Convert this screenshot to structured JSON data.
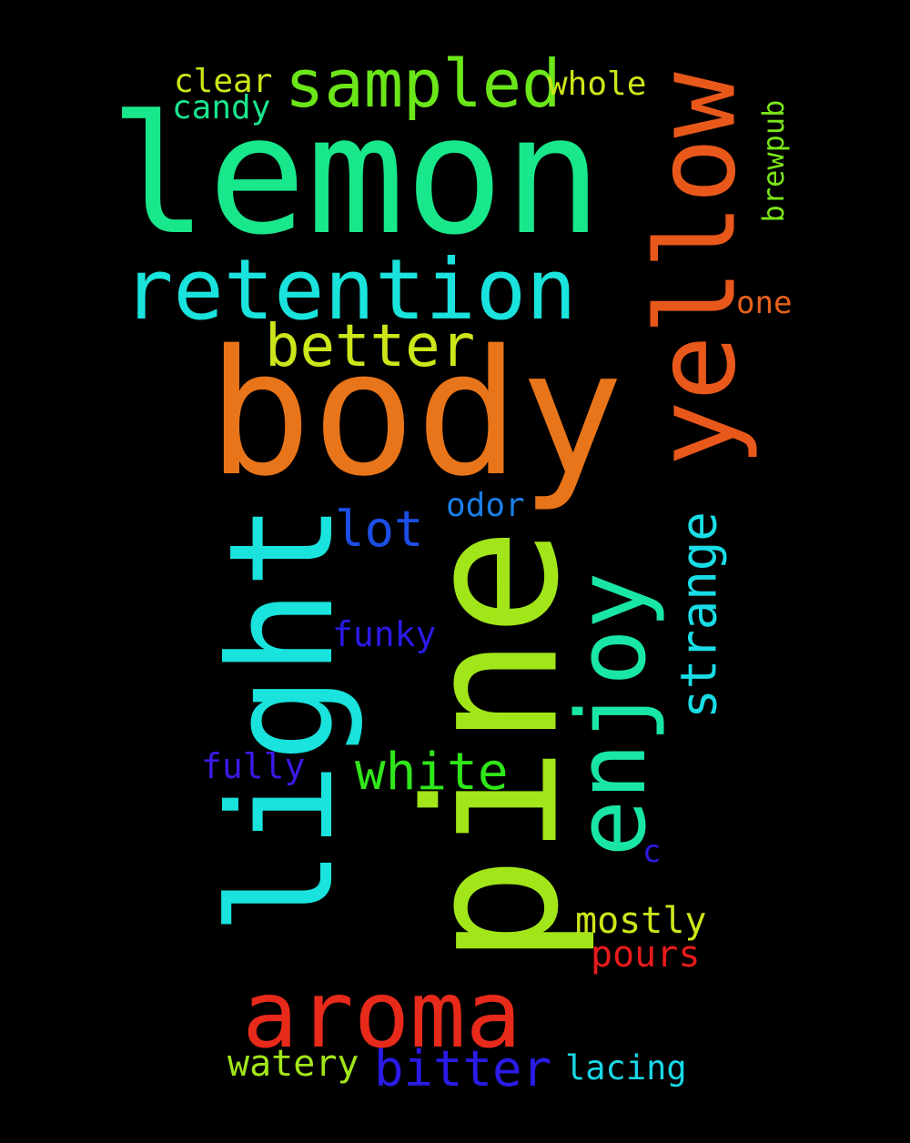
{
  "background": "#000000",
  "words": [
    {
      "text": "lemon",
      "color": "#19e78c",
      "rotated": false
    },
    {
      "text": "body",
      "color": "#e8751a",
      "rotated": false
    },
    {
      "text": "pine",
      "color": "#a2e619",
      "rotated": true
    },
    {
      "text": "light",
      "color": "#19e3dc",
      "rotated": true
    },
    {
      "text": "yellow",
      "color": "#e9581b",
      "rotated": true
    },
    {
      "text": "retention",
      "color": "#19e3dc",
      "rotated": false
    },
    {
      "text": "enjoy",
      "color": "#19e6a6",
      "rotated": true
    },
    {
      "text": "aroma",
      "color": "#e82a1b",
      "rotated": false
    },
    {
      "text": "sampled",
      "color": "#6be619",
      "rotated": false
    },
    {
      "text": "better",
      "color": "#cde619",
      "rotated": false
    },
    {
      "text": "white",
      "color": "#2fe619",
      "rotated": false
    },
    {
      "text": "strange",
      "color": "#19dde6",
      "rotated": true
    },
    {
      "text": "lot",
      "color": "#1c4ee6",
      "rotated": false
    },
    {
      "text": "bitter",
      "color": "#2a1be6",
      "rotated": false
    },
    {
      "text": "odor",
      "color": "#1b7ee8",
      "rotated": false
    },
    {
      "text": "mostly",
      "color": "#cde619",
      "rotated": false
    },
    {
      "text": "pours",
      "color": "#e81b1b",
      "rotated": false
    },
    {
      "text": "watery",
      "color": "#a2e619",
      "rotated": false
    },
    {
      "text": "lacing",
      "color": "#19d7e6",
      "rotated": false
    },
    {
      "text": "clear",
      "color": "#cde619",
      "rotated": false
    },
    {
      "text": "candy",
      "color": "#19e68e",
      "rotated": false
    },
    {
      "text": "whole",
      "color": "#cde619",
      "rotated": false
    },
    {
      "text": "brewpub",
      "color": "#7ae619",
      "rotated": true
    },
    {
      "text": "one",
      "color": "#e8621b",
      "rotated": false
    },
    {
      "text": "funky",
      "color": "#2a1be6",
      "rotated": false
    },
    {
      "text": "fully",
      "color": "#3a1be6",
      "rotated": false
    },
    {
      "text": "c",
      "color": "#2a1be6",
      "rotated": false
    }
  ]
}
